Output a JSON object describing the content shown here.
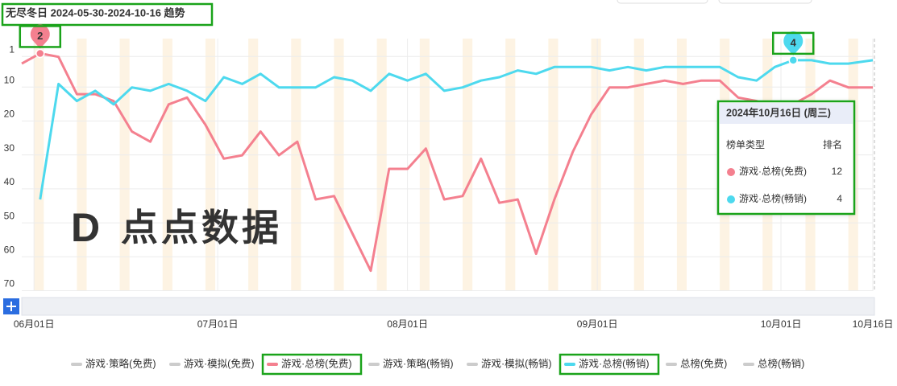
{
  "chart_data": {
    "type": "line",
    "title": "无尽冬日 2024-05-30-2024-10-16 趋势",
    "watermark": "点点数据",
    "y_inverted": true,
    "grid": true,
    "x": [
      "2024-05-30",
      "2024-06-02",
      "2024-06-05",
      "2024-06-08",
      "2024-06-11",
      "2024-06-14",
      "2024-06-17",
      "2024-06-20",
      "2024-06-23",
      "2024-06-26",
      "2024-06-29",
      "2024-07-02",
      "2024-07-05",
      "2024-07-08",
      "2024-07-11",
      "2024-07-14",
      "2024-07-17",
      "2024-07-20",
      "2024-07-23",
      "2024-07-26",
      "2024-07-29",
      "2024-08-01",
      "2024-08-04",
      "2024-08-07",
      "2024-08-10",
      "2024-08-13",
      "2024-08-16",
      "2024-08-19",
      "2024-08-22",
      "2024-08-25",
      "2024-08-28",
      "2024-08-31",
      "2024-09-03",
      "2024-09-06",
      "2024-09-09",
      "2024-09-12",
      "2024-09-15",
      "2024-09-18",
      "2024-09-21",
      "2024-09-24",
      "2024-09-27",
      "2024-09-30",
      "2024-10-03",
      "2024-10-06",
      "2024-10-09",
      "2024-10-12",
      "2024-10-16"
    ],
    "xlim": [
      "2024-05-30",
      "2024-10-16"
    ],
    "xticks": [
      {
        "value": "2024-06-01",
        "label": "06月01日"
      },
      {
        "value": "2024-07-01",
        "label": "07月01日"
      },
      {
        "value": "2024-08-01",
        "label": "08月01日"
      },
      {
        "value": "2024-09-01",
        "label": "09月01日"
      },
      {
        "value": "2024-10-01",
        "label": "10月01日"
      },
      {
        "value": "2024-10-16",
        "label": "10月16日"
      }
    ],
    "ylim": [
      0,
      72
    ],
    "yticks": [
      1,
      10,
      20,
      30,
      40,
      50,
      60,
      70
    ],
    "series": [
      {
        "name": "游戏·总榜(免费)",
        "color": "#f4808f",
        "values": [
          5,
          2,
          3,
          14,
          14,
          16,
          25,
          28,
          17,
          15,
          23,
          33,
          32,
          25,
          32,
          28,
          45,
          44,
          55,
          66,
          36,
          36,
          30,
          45,
          44,
          33,
          46,
          45,
          61,
          45,
          31,
          20,
          12,
          12,
          11,
          10,
          11,
          10,
          10,
          15,
          16,
          18,
          17,
          14,
          10,
          12,
          12
        ]
      },
      {
        "name": "游戏·总榜(畅销)",
        "color": "#4dd9ee",
        "values": [
          null,
          45,
          11,
          16,
          13,
          17,
          12,
          13,
          11,
          13,
          16,
          9,
          11,
          8,
          12,
          12,
          12,
          9,
          10,
          13,
          8,
          10,
          8,
          13,
          12,
          10,
          9,
          7,
          8,
          6,
          6,
          6,
          7,
          6,
          7,
          6,
          6,
          6,
          6,
          9,
          10,
          6,
          4,
          4,
          5,
          5,
          4
        ]
      }
    ],
    "markers": [
      {
        "series": 0,
        "index": 1
      },
      {
        "series": 1,
        "index": 42
      }
    ],
    "legend": [
      "游戏·策略(免费)",
      "游戏·模拟(免费)",
      "游戏·总榜(免费)",
      "游戏·策略(畅销)",
      "游戏·模拟(畅销)",
      "游戏·总榜(畅销)",
      "总榜(免费)",
      "总榜(畅销)"
    ],
    "legend_active": [
      false,
      false,
      true,
      false,
      false,
      true,
      false,
      false
    ],
    "tooltip": {
      "title": "2024年10月16日 (周三)",
      "headers": [
        "榜单类型",
        "排名"
      ],
      "index": 46
    }
  }
}
